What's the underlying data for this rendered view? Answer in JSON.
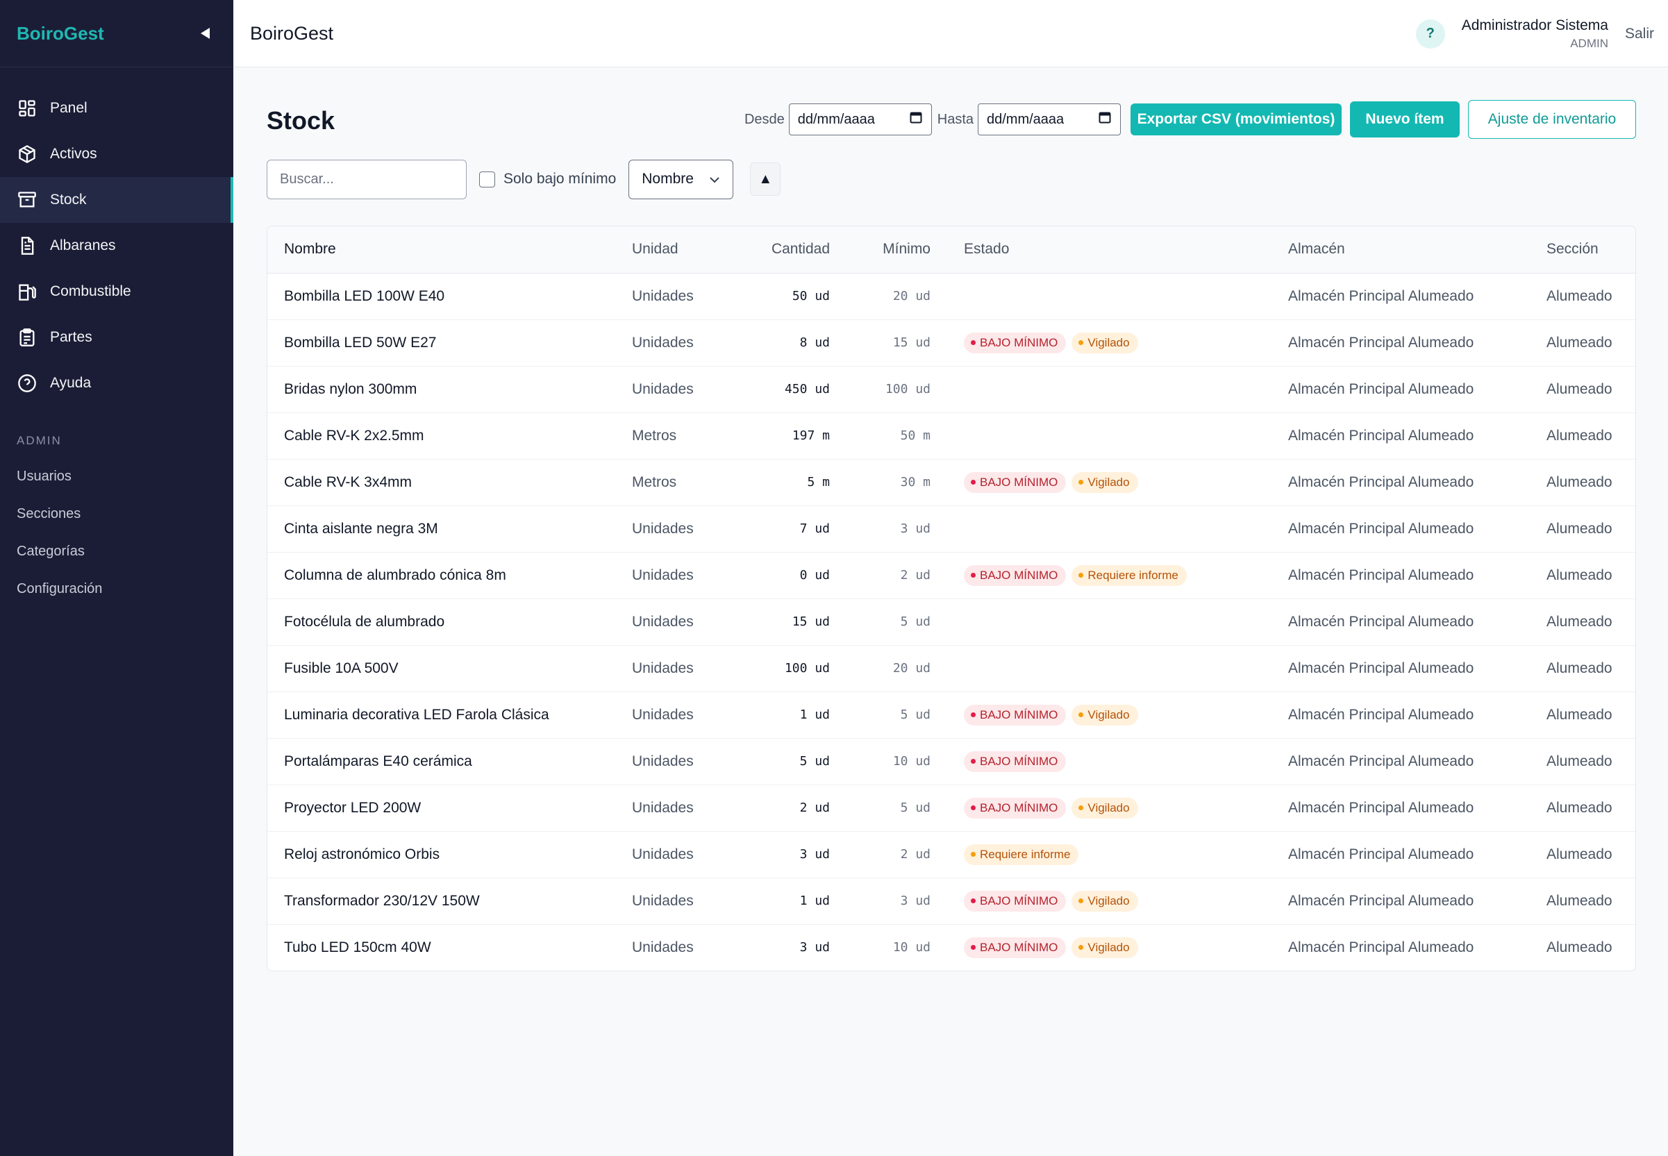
{
  "app": {
    "brand": "BoiroGest",
    "title": "BoiroGest"
  },
  "sidebar": {
    "items": [
      {
        "label": "Panel",
        "icon": "grid-icon"
      },
      {
        "label": "Activos",
        "icon": "box-icon"
      },
      {
        "label": "Stock",
        "icon": "archive-icon",
        "active": true
      },
      {
        "label": "Albaranes",
        "icon": "document-icon"
      },
      {
        "label": "Combustible",
        "icon": "fuel-icon"
      },
      {
        "label": "Partes",
        "icon": "clipboard-icon"
      },
      {
        "label": "Ayuda",
        "icon": "help-circle-icon"
      }
    ],
    "admin_label": "ADMIN",
    "admin_items": [
      "Usuarios",
      "Secciones",
      "Categorías",
      "Configuración"
    ]
  },
  "topbar": {
    "help": "?",
    "user_name": "Administrador Sistema",
    "user_role": "ADMIN",
    "logout": "Salir"
  },
  "page": {
    "title": "Stock",
    "from_label": "Desde",
    "from_value": "dd/mm/aaaa",
    "to_label": "Hasta",
    "to_value": "dd/mm/aaaa",
    "export_button": "Exportar CSV (movimientos)",
    "new_button": "Nuevo ítem",
    "adjust_button": "Ajuste de inventario"
  },
  "filters": {
    "search_placeholder": "Buscar...",
    "only_below_min": "Solo bajo mínimo",
    "sort_field": "Nombre",
    "sort_direction": "▲"
  },
  "table": {
    "columns": [
      "Nombre",
      "Unidad",
      "Cantidad",
      "Mínimo",
      "Estado",
      "Almacén",
      "Sección"
    ],
    "rows": [
      {
        "name": "Bombilla LED 100W E40",
        "unit": "Unidades",
        "qty": "50 ud",
        "min": "20 ud",
        "badges": [],
        "warehouse": "Almacén Principal Alumeado",
        "section": "Alumeado"
      },
      {
        "name": "Bombilla LED 50W E27",
        "unit": "Unidades",
        "qty": "8 ud",
        "min": "15 ud",
        "badges": [
          {
            "text": "BAJO MÍNIMO",
            "kind": "red"
          },
          {
            "text": "Vigilado",
            "kind": "amber"
          }
        ],
        "warehouse": "Almacén Principal Alumeado",
        "section": "Alumeado"
      },
      {
        "name": "Bridas nylon 300mm",
        "unit": "Unidades",
        "qty": "450 ud",
        "min": "100 ud",
        "badges": [],
        "warehouse": "Almacén Principal Alumeado",
        "section": "Alumeado"
      },
      {
        "name": "Cable RV-K 2x2.5mm",
        "unit": "Metros",
        "qty": "197 m",
        "min": "50 m",
        "badges": [],
        "warehouse": "Almacén Principal Alumeado",
        "section": "Alumeado"
      },
      {
        "name": "Cable RV-K 3x4mm",
        "unit": "Metros",
        "qty": "5 m",
        "min": "30 m",
        "badges": [
          {
            "text": "BAJO MÍNIMO",
            "kind": "red"
          },
          {
            "text": "Vigilado",
            "kind": "amber"
          }
        ],
        "warehouse": "Almacén Principal Alumeado",
        "section": "Alumeado"
      },
      {
        "name": "Cinta aislante negra 3M",
        "unit": "Unidades",
        "qty": "7 ud",
        "min": "3 ud",
        "badges": [],
        "warehouse": "Almacén Principal Alumeado",
        "section": "Alumeado"
      },
      {
        "name": "Columna de alumbrado cónica 8m",
        "unit": "Unidades",
        "qty": "0 ud",
        "min": "2 ud",
        "badges": [
          {
            "text": "BAJO MÍNIMO",
            "kind": "red"
          },
          {
            "text": "Requiere informe",
            "kind": "amber"
          }
        ],
        "warehouse": "Almacén Principal Alumeado",
        "section": "Alumeado"
      },
      {
        "name": "Fotocélula de alumbrado",
        "unit": "Unidades",
        "qty": "15 ud",
        "min": "5 ud",
        "badges": [],
        "warehouse": "Almacén Principal Alumeado",
        "section": "Alumeado"
      },
      {
        "name": "Fusible 10A 500V",
        "unit": "Unidades",
        "qty": "100 ud",
        "min": "20 ud",
        "badges": [],
        "warehouse": "Almacén Principal Alumeado",
        "section": "Alumeado"
      },
      {
        "name": "Luminaria decorativa LED Farola Clásica",
        "unit": "Unidades",
        "qty": "1 ud",
        "min": "5 ud",
        "badges": [
          {
            "text": "BAJO MÍNIMO",
            "kind": "red"
          },
          {
            "text": "Vigilado",
            "kind": "amber"
          }
        ],
        "warehouse": "Almacén Principal Alumeado",
        "section": "Alumeado"
      },
      {
        "name": "Portalámparas E40 cerámica",
        "unit": "Unidades",
        "qty": "5 ud",
        "min": "10 ud",
        "badges": [
          {
            "text": "BAJO MÍNIMO",
            "kind": "red"
          }
        ],
        "warehouse": "Almacén Principal Alumeado",
        "section": "Alumeado"
      },
      {
        "name": "Proyector LED 200W",
        "unit": "Unidades",
        "qty": "2 ud",
        "min": "5 ud",
        "badges": [
          {
            "text": "BAJO MÍNIMO",
            "kind": "red"
          },
          {
            "text": "Vigilado",
            "kind": "amber"
          }
        ],
        "warehouse": "Almacén Principal Alumeado",
        "section": "Alumeado"
      },
      {
        "name": "Reloj astronómico Orbis",
        "unit": "Unidades",
        "qty": "3 ud",
        "min": "2 ud",
        "badges": [
          {
            "text": "Requiere informe",
            "kind": "amber"
          }
        ],
        "warehouse": "Almacén Principal Alumeado",
        "section": "Alumeado"
      },
      {
        "name": "Transformador 230/12V 150W",
        "unit": "Unidades",
        "qty": "1 ud",
        "min": "3 ud",
        "badges": [
          {
            "text": "BAJO MÍNIMO",
            "kind": "red"
          },
          {
            "text": "Vigilado",
            "kind": "amber"
          }
        ],
        "warehouse": "Almacén Principal Alumeado",
        "section": "Alumeado"
      },
      {
        "name": "Tubo LED 150cm 40W",
        "unit": "Unidades",
        "qty": "3 ud",
        "min": "10 ud",
        "badges": [
          {
            "text": "BAJO MÍNIMO",
            "kind": "red"
          },
          {
            "text": "Vigilado",
            "kind": "amber"
          }
        ],
        "warehouse": "Almacén Principal Alumeado",
        "section": "Alumeado"
      }
    ]
  },
  "colors": {
    "accent": "#14b8b2",
    "sidebar_bg": "#1b1d36",
    "danger": "#b4232c",
    "warning": "#b45309"
  }
}
